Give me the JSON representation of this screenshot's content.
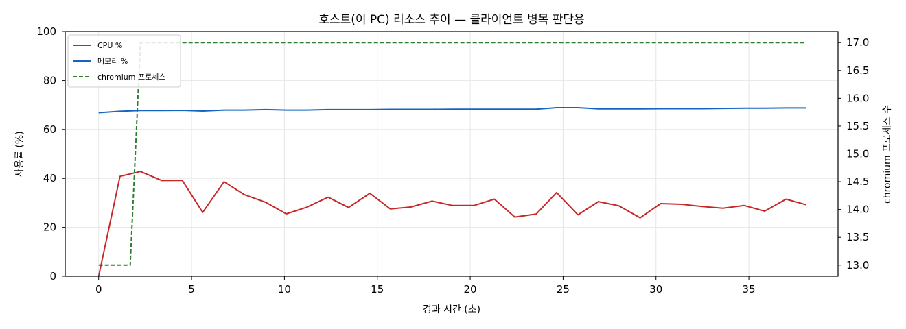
{
  "chart_data": {
    "type": "line",
    "title": "호스트(이 PC) 리소스 추이 — 클라이언트 병목 판단용",
    "xlabel": "경과 시간 (초)",
    "ylabel": "사용률 (%)",
    "y2label": "chromium 프로세스 수",
    "xlim": [
      -1.8,
      39.8
    ],
    "ylim": [
      0,
      100
    ],
    "y2lim": [
      12.8,
      17.2
    ],
    "xticks": [
      0,
      5,
      10,
      15,
      20,
      25,
      30,
      35
    ],
    "yticks": [
      0,
      20,
      40,
      60,
      80,
      100
    ],
    "y2ticks": [
      "13.0",
      "13.5",
      "14.0",
      "14.5",
      "15.0",
      "15.5",
      "16.0",
      "16.5",
      "17.0"
    ],
    "grid": true,
    "legend_position": "top-left",
    "series": [
      {
        "name": "CPU %",
        "axis": "left",
        "color": "#c62828",
        "style": "solid",
        "x": [
          0,
          1.15,
          2.25,
          3.4,
          4.5,
          5.6,
          6.75,
          7.85,
          9.0,
          10.1,
          11.2,
          12.35,
          13.45,
          14.6,
          15.7,
          16.8,
          17.95,
          19.05,
          20.2,
          21.3,
          22.4,
          23.55,
          24.65,
          25.8,
          26.9,
          28.0,
          29.15,
          30.25,
          31.4,
          32.5,
          33.6,
          34.75,
          35.85,
          37.0,
          38.1
        ],
        "y": [
          0,
          40.8,
          42.8,
          39.1,
          39.2,
          26.1,
          38.6,
          33.3,
          30.2,
          25.5,
          28.2,
          32.3,
          28.1,
          33.9,
          27.5,
          28.3,
          30.7,
          28.9,
          28.9,
          31.5,
          24.2,
          25.4,
          34.2,
          25.1,
          30.5,
          28.8,
          23.9,
          29.7,
          29.4,
          28.5,
          27.8,
          28.9,
          26.6,
          31.5,
          29.2
        ]
      },
      {
        "name": "메모리 %",
        "axis": "left",
        "color": "#1565c0",
        "style": "solid",
        "x": [
          0,
          1.15,
          2.25,
          3.4,
          4.5,
          5.6,
          6.75,
          7.85,
          9.0,
          10.1,
          11.2,
          12.35,
          13.45,
          14.6,
          15.7,
          16.8,
          17.95,
          19.05,
          20.2,
          21.3,
          22.4,
          23.55,
          24.65,
          25.8,
          26.9,
          28.0,
          29.15,
          30.25,
          31.4,
          32.5,
          33.6,
          34.75,
          35.85,
          37.0,
          38.1
        ],
        "y": [
          66.8,
          67.4,
          67.7,
          67.7,
          67.8,
          67.5,
          67.9,
          67.9,
          68.1,
          67.9,
          67.9,
          68.1,
          68.1,
          68.1,
          68.2,
          68.2,
          68.2,
          68.3,
          68.3,
          68.3,
          68.3,
          68.3,
          68.9,
          68.9,
          68.4,
          68.4,
          68.4,
          68.5,
          68.5,
          68.5,
          68.6,
          68.7,
          68.7,
          68.8,
          68.8
        ]
      },
      {
        "name": "chromium 프로세스",
        "axis": "right",
        "color": "#2e7d32",
        "style": "dashed",
        "x": [
          0,
          1.15,
          2.25,
          3.4,
          4.5,
          5.6,
          6.75,
          7.85,
          9.0,
          10.1,
          11.2,
          12.35,
          13.45,
          14.6,
          15.7,
          16.8,
          17.95,
          19.05,
          20.2,
          21.3,
          22.4,
          23.55,
          24.65,
          25.8,
          26.9,
          28.0,
          29.15,
          30.25,
          31.4,
          32.5,
          33.6,
          34.75,
          35.85,
          37.0,
          38.1
        ],
        "y": [
          13,
          13,
          17,
          17,
          17,
          17,
          17,
          17,
          17,
          17,
          17,
          17,
          17,
          17,
          17,
          17,
          17,
          17,
          17,
          17,
          17,
          17,
          17,
          17,
          17,
          17,
          17,
          17,
          17,
          17,
          17,
          17,
          17,
          17,
          17
        ]
      }
    ]
  }
}
